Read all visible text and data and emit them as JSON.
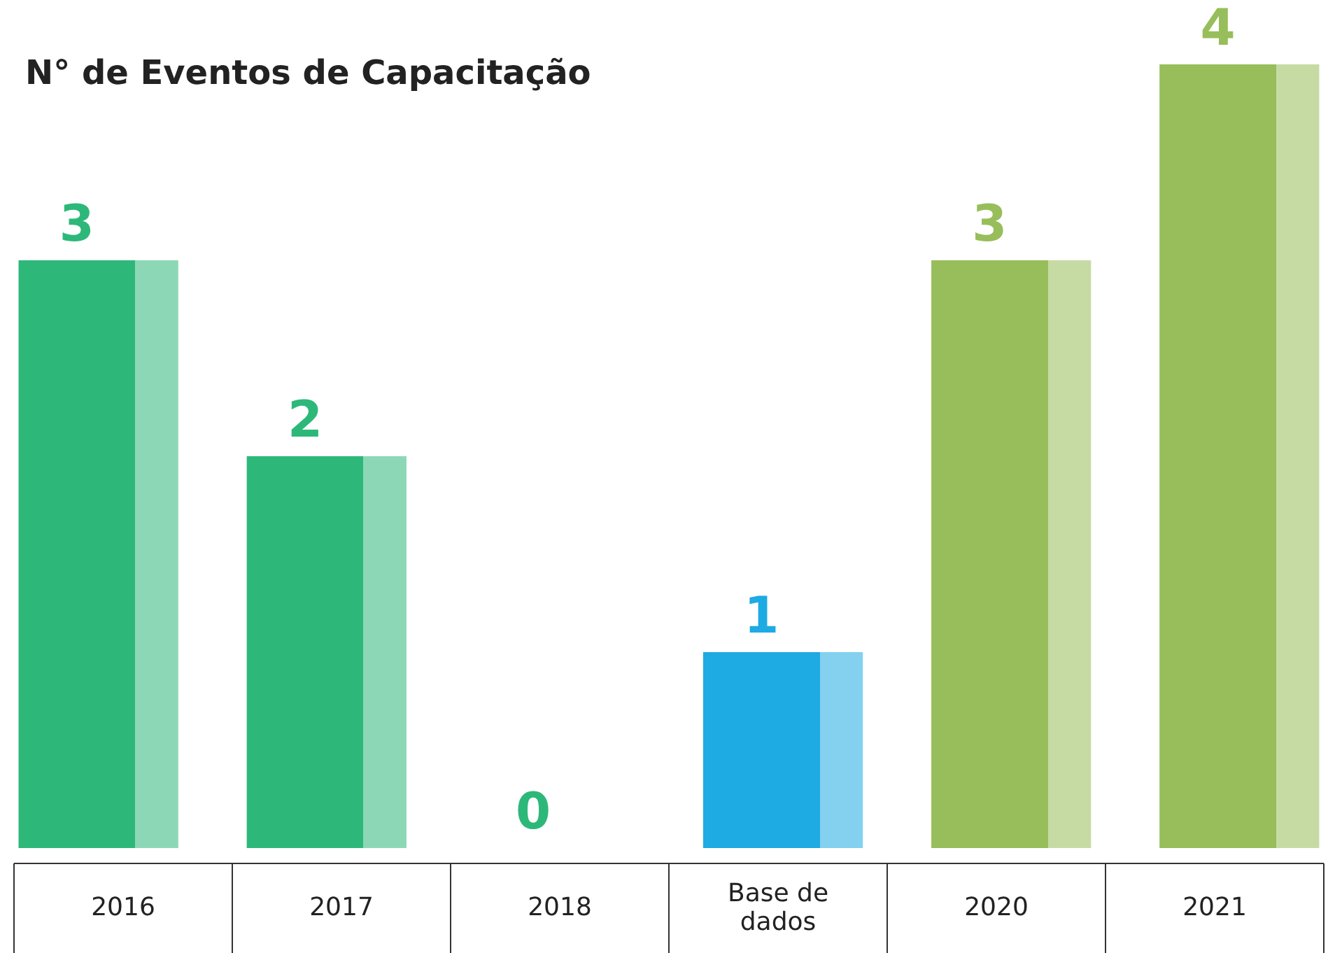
{
  "chart_data": {
    "type": "bar",
    "title": "N° de Eventos de Capacitação",
    "categories": [
      "2016",
      "2017",
      "2018",
      "Base de dados",
      "2020",
      "2021"
    ],
    "values": [
      3,
      2,
      0,
      1,
      3,
      4
    ],
    "colors": [
      "#2db87a",
      "#2db87a",
      "#2db87a",
      "#1eaae2",
      "#97be5a",
      "#97be5a"
    ],
    "data_labels": true
  }
}
